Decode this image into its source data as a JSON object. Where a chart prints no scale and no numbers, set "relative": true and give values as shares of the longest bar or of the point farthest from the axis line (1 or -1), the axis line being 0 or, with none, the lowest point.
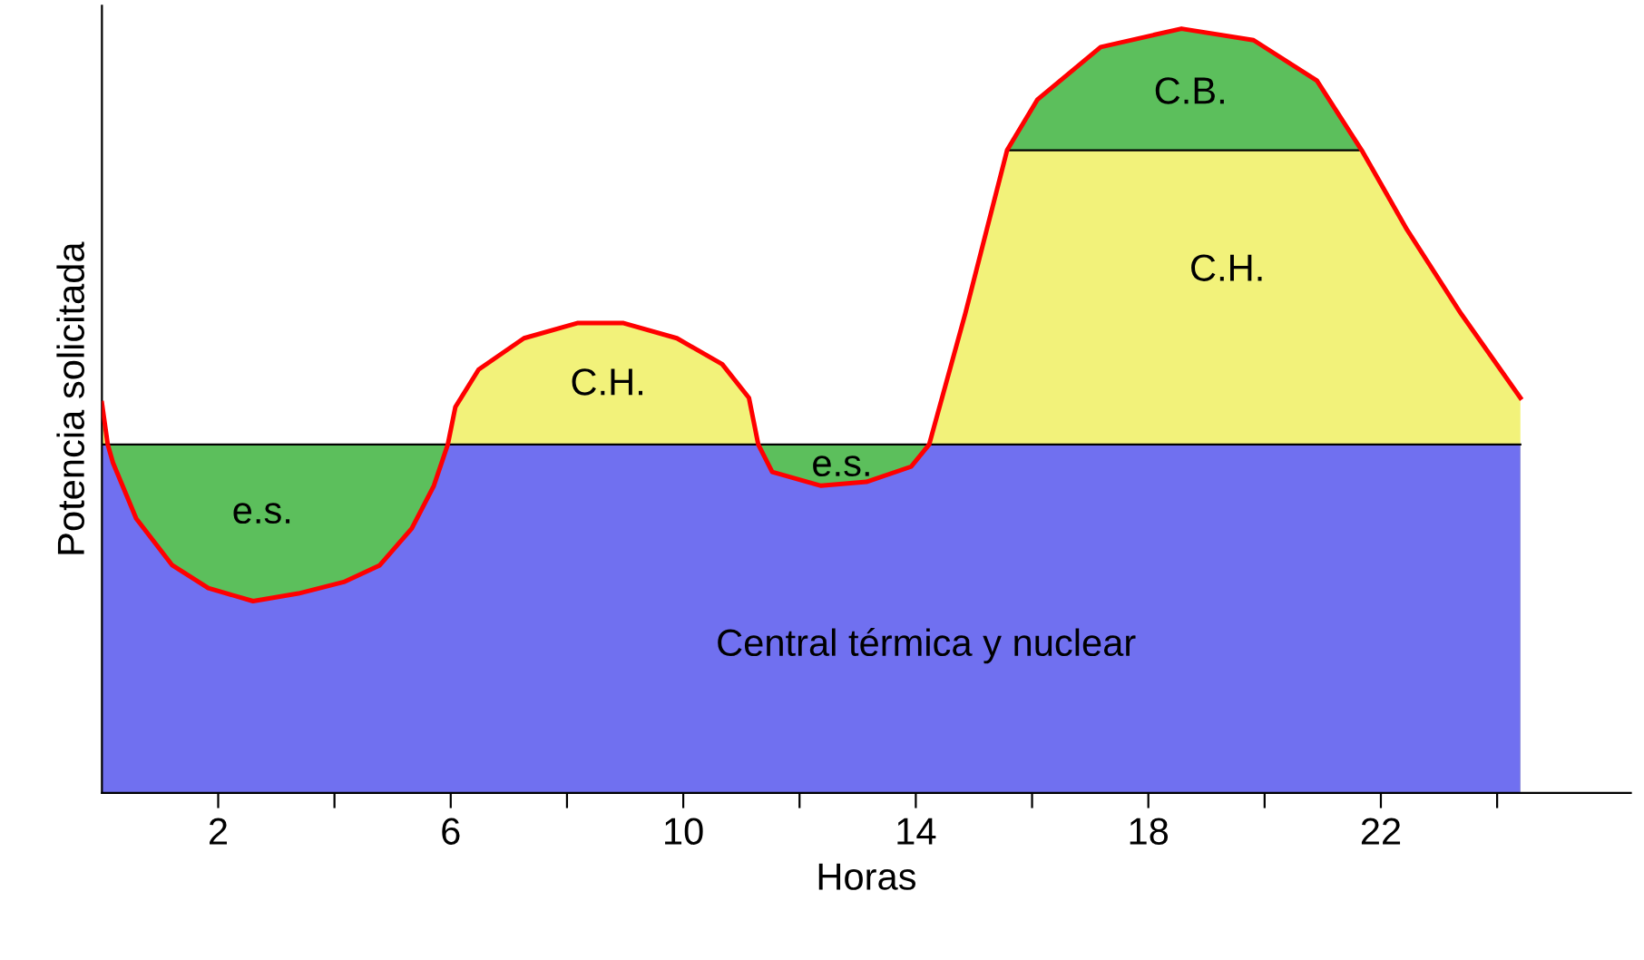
{
  "chart_data": {
    "type": "area",
    "relative": true,
    "xlabel": "Horas",
    "ylabel": "Potencia solicitada",
    "xlim": [
      0,
      26.3
    ],
    "xticks": [
      2,
      {
        "value": 4,
        "label": null
      },
      6,
      {
        "value": 8,
        "label": null
      },
      10,
      {
        "value": 12,
        "label": null
      },
      14,
      {
        "value": 16,
        "label": null
      },
      18,
      {
        "value": 20,
        "label": null
      },
      22,
      {
        "value": 24,
        "label": null
      }
    ],
    "series": [
      {
        "color": "#5cbf5c",
        "x": [
          15.57,
          16.09,
          17.18,
          18.57,
          19.81,
          20.9,
          21.67
        ],
        "values": [
          0.841,
          0.907,
          0.976,
          1.0,
          0.985,
          0.932,
          0.841
        ]
      },
      {
        "color": "#f2f27a",
        "x": [
          0,
          0.1,
          0.19,
          0.59,
          1.21,
          1.83,
          2.6,
          3.38,
          4.16,
          4.78,
          5.33,
          5.71,
          5.95,
          6.08,
          6.48,
          7.26,
          8.19,
          8.96,
          9.89,
          10.67,
          11.13,
          11.29,
          11.53,
          12.37,
          13.15,
          13.92,
          14.23,
          14.85,
          15.57,
          16.09,
          17.18,
          18.57,
          19.81,
          20.9,
          21.67,
          22.45,
          23.38,
          24.4
        ],
        "values": [
          0.51,
          0.456,
          null,
          null,
          null,
          null,
          null,
          null,
          null,
          null,
          null,
          null,
          0.456,
          0.505,
          0.554,
          0.595,
          0.615,
          0.615,
          0.595,
          0.561,
          0.517,
          0.456,
          null,
          null,
          null,
          null,
          0.456,
          0.627,
          0.841,
          0.841,
          0.841,
          0.841,
          0.841,
          0.841,
          0.841,
          0.737,
          0.627,
          0.517
        ]
      },
      {
        "color": "#5cbf5c",
        "x": [
          0.1,
          0.19,
          0.59,
          1.21,
          1.83,
          2.6,
          3.38,
          4.16,
          4.78,
          5.33,
          5.71,
          5.95
        ],
        "values": [
          0.456,
          0.456,
          0.456,
          0.456,
          0.456,
          0.456,
          0.456,
          0.456,
          0.456,
          0.456,
          0.456,
          0.456
        ]
      },
      {
        "color": "#5cbf5c",
        "x": [
          11.29,
          11.53,
          12.37,
          13.15,
          13.92,
          14.23
        ],
        "values": [
          0.456,
          0.456,
          0.456,
          0.456,
          0.456,
          0.456
        ]
      },
      {
        "color": "#7070f0",
        "x": [
          0,
          0.1,
          0.19,
          0.59,
          1.21,
          1.83,
          2.6,
          3.38,
          4.16,
          4.78,
          5.33,
          5.71,
          5.95,
          6.08,
          6.48,
          7.26,
          8.19,
          8.96,
          9.89,
          10.67,
          11.13,
          11.29,
          11.53,
          12.37,
          13.15,
          13.92,
          14.23,
          14.85,
          15.57,
          16.09,
          17.18,
          18.57,
          19.81,
          20.9,
          21.67,
          22.45,
          23.38,
          24.4
        ],
        "values": [
          0.456,
          0.456,
          0.432,
          0.359,
          0.298,
          0.268,
          0.251,
          0.261,
          0.276,
          0.298,
          0.346,
          0.402,
          0.456,
          0.456,
          0.456,
          0.456,
          0.456,
          0.456,
          0.456,
          0.456,
          0.456,
          0.456,
          0.42,
          0.402,
          0.407,
          0.427,
          0.456,
          0.456,
          0.456,
          0.456,
          0.456,
          0.456,
          0.456,
          0.456,
          0.456,
          0.456,
          0.456,
          0.456
        ]
      },
      {
        "type": "line",
        "color": "#ff0000",
        "x": [
          0,
          0.1,
          0.19,
          0.59,
          1.21,
          1.83,
          2.6,
          3.38,
          4.16,
          4.78,
          5.33,
          5.71,
          5.95,
          6.08,
          6.48,
          7.26,
          8.19,
          8.96,
          9.89,
          10.67,
          11.13,
          11.29,
          11.53,
          12.37,
          13.15,
          13.92,
          14.23,
          14.85,
          15.57,
          16.09,
          17.18,
          18.57,
          19.81,
          20.9,
          21.67,
          22.45,
          23.38,
          24.4
        ],
        "values": [
          0.51,
          0.456,
          0.432,
          0.359,
          0.298,
          0.268,
          0.251,
          0.261,
          0.276,
          0.298,
          0.346,
          0.402,
          0.456,
          0.505,
          0.554,
          0.595,
          0.615,
          0.615,
          0.595,
          0.561,
          0.517,
          0.456,
          0.42,
          0.402,
          0.407,
          0.427,
          0.456,
          0.627,
          0.841,
          0.907,
          0.976,
          1.0,
          0.985,
          0.932,
          0.841,
          0.737,
          0.627,
          0.517
        ]
      }
    ],
    "annotations": [
      "e.s.",
      "C.H.",
      "e.s.",
      "C.B.",
      "C.H.",
      "Central térmica y nuclear"
    ]
  }
}
